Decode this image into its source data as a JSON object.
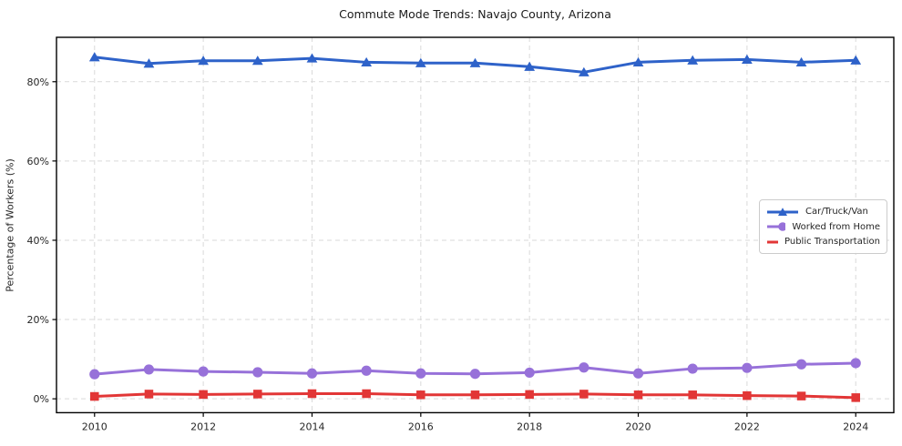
{
  "chart": {
    "title": "Commute Mode Trends: Navajo County, Arizona",
    "ylabel": "Percentage of Workers (%)",
    "xlabel": ""
  },
  "chart_data": {
    "type": "line",
    "title": "Commute Mode Trends: Navajo County, Arizona",
    "xlabel": "",
    "ylabel": "Percentage of Workers (%)",
    "x": [
      2010,
      2011,
      2012,
      2013,
      2014,
      2015,
      2016,
      2017,
      2018,
      2019,
      2020,
      2021,
      2022,
      2023,
      2024
    ],
    "series": [
      {
        "name": "Car/Truck/Van",
        "color": "#2e62c9",
        "marker": "triangle",
        "values": [
          86.2,
          84.6,
          85.3,
          85.3,
          85.9,
          84.9,
          84.7,
          84.7,
          83.8,
          82.4,
          84.9,
          85.4,
          85.6,
          84.9,
          85.4
        ]
      },
      {
        "name": "Worked from Home",
        "color": "#9771d9",
        "marker": "circle",
        "values": [
          6.2,
          7.4,
          6.9,
          6.7,
          6.4,
          7.1,
          6.4,
          6.3,
          6.6,
          7.9,
          6.4,
          7.6,
          7.8,
          8.7,
          9.0
        ]
      },
      {
        "name": "Public Transportation",
        "color": "#e23636",
        "marker": "square",
        "values": [
          0.6,
          1.2,
          1.1,
          1.2,
          1.3,
          1.3,
          1.0,
          1.0,
          1.1,
          1.2,
          1.0,
          1.0,
          0.8,
          0.7,
          0.3
        ]
      }
    ],
    "xticks": [
      2010,
      2012,
      2014,
      2016,
      2018,
      2020,
      2022,
      2024
    ],
    "yticks": [
      0,
      20,
      40,
      60,
      80
    ],
    "ytick_suffix": "%",
    "xlim": [
      2009.3,
      2024.7
    ],
    "ylim": [
      -3.5,
      91.2
    ],
    "grid": true,
    "grid_style": "dashed",
    "legend_position": "center-right",
    "legend_entries": [
      "Car/Truck/Van",
      "Worked from Home",
      "Public Transportation"
    ]
  },
  "colors": {
    "grid": "#d9d9d9",
    "spine": "#000000",
    "text": "#262626",
    "legend_border": "#cccccc",
    "legend_bg": "#ffffff"
  }
}
